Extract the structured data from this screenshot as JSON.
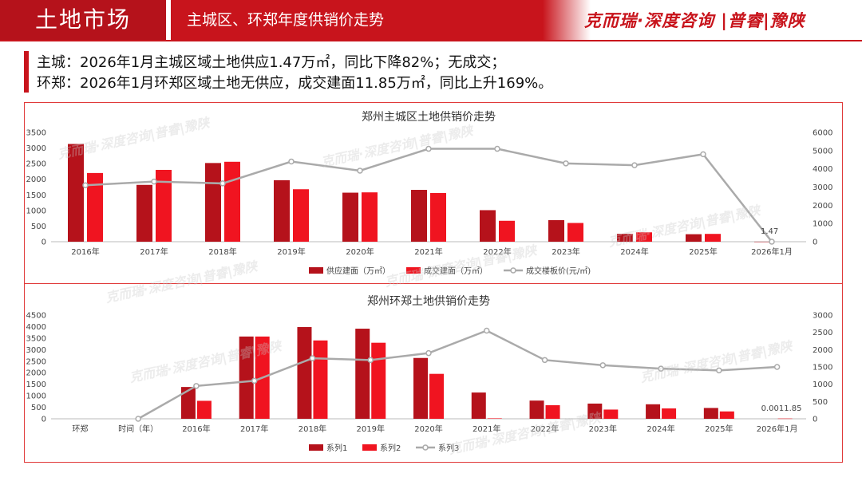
{
  "header": {
    "section_title": "土地市场",
    "subtitle": "主城区、环郑年度供销价走势",
    "brand": "克而瑞·深度咨询 |普睿|豫陕"
  },
  "summary": {
    "line1": "主城：2026年1月主城区域土地供应1.47万㎡，同比下降82%；无成交；",
    "line2": "环郑：2026年1月环郑区域土地无供应，成交建面11.85万㎡，同比上升169%。"
  },
  "watermark": "克而瑞·深度咨询|普睿|豫陕",
  "colors": {
    "supply": "#b5121b",
    "deal": "#f01420",
    "price": "#aaaaaa",
    "accent": "#c8141c"
  },
  "chart_data": [
    {
      "type": "bar+line",
      "title": "郑州主城区土地供销价走势",
      "categories": [
        "2016年",
        "2017年",
        "2018年",
        "2019年",
        "2020年",
        "2021年",
        "2022年",
        "2023年",
        "2024年",
        "2025年",
        "2026年1月"
      ],
      "series": [
        {
          "name": "供应建面（万㎡）",
          "kind": "bar",
          "axis": "left",
          "values": [
            3130,
            1820,
            2520,
            1970,
            1570,
            1660,
            1010,
            690,
            250,
            240,
            1.47
          ]
        },
        {
          "name": "成交建面（万㎡）",
          "kind": "bar",
          "axis": "left",
          "values": [
            2200,
            2300,
            2560,
            1680,
            1580,
            1560,
            670,
            600,
            300,
            250,
            0
          ]
        },
        {
          "name": "成交楼板价(元/㎡)",
          "kind": "line",
          "axis": "right",
          "values": [
            3100,
            3300,
            3200,
            4400,
            3900,
            5100,
            5100,
            4300,
            4200,
            4800,
            0
          ]
        }
      ],
      "y_left": {
        "min": 0,
        "max": 3500,
        "ticks": [
          0,
          500,
          1000,
          1500,
          2000,
          2500,
          3000,
          3500
        ]
      },
      "y_right": {
        "min": 0,
        "max": 6000,
        "ticks": [
          0,
          1000,
          2000,
          3000,
          4000,
          5000,
          6000
        ]
      },
      "annotations": [
        "1.47"
      ],
      "legend": "bottom"
    },
    {
      "type": "bar+line",
      "title": "郑州环郑土地供销价走势",
      "categories": [
        "环郑",
        "时间（年）",
        "2016年",
        "2017年",
        "2018年",
        "2019年",
        "2020年",
        "2021年",
        "2022年",
        "2023年",
        "2024年",
        "2025年",
        "2026年1月"
      ],
      "series": [
        {
          "name": "系列1",
          "kind": "bar",
          "axis": "left",
          "values": [
            null,
            null,
            1380,
            3570,
            3980,
            3910,
            2640,
            1140,
            790,
            660,
            630,
            470,
            0
          ]
        },
        {
          "name": "系列2",
          "kind": "bar",
          "axis": "left",
          "values": [
            null,
            null,
            780,
            3570,
            3400,
            3300,
            1950,
            20,
            590,
            400,
            450,
            320,
            11.85
          ]
        },
        {
          "name": "系列3",
          "kind": "line",
          "axis": "right",
          "values": [
            null,
            0,
            950,
            1100,
            1750,
            1700,
            1900,
            2550,
            1700,
            1550,
            1450,
            1400,
            1500
          ]
        }
      ],
      "y_left": {
        "min": 0,
        "max": 4500,
        "ticks": [
          0,
          500,
          1000,
          1500,
          2000,
          2500,
          3000,
          3500,
          4000,
          4500
        ]
      },
      "y_right": {
        "min": 0,
        "max": 3000,
        "ticks": [
          0,
          500,
          1000,
          1500,
          2000,
          2500,
          3000
        ]
      },
      "annotations": [
        "0.0011.85"
      ],
      "legend": "bottom"
    }
  ]
}
